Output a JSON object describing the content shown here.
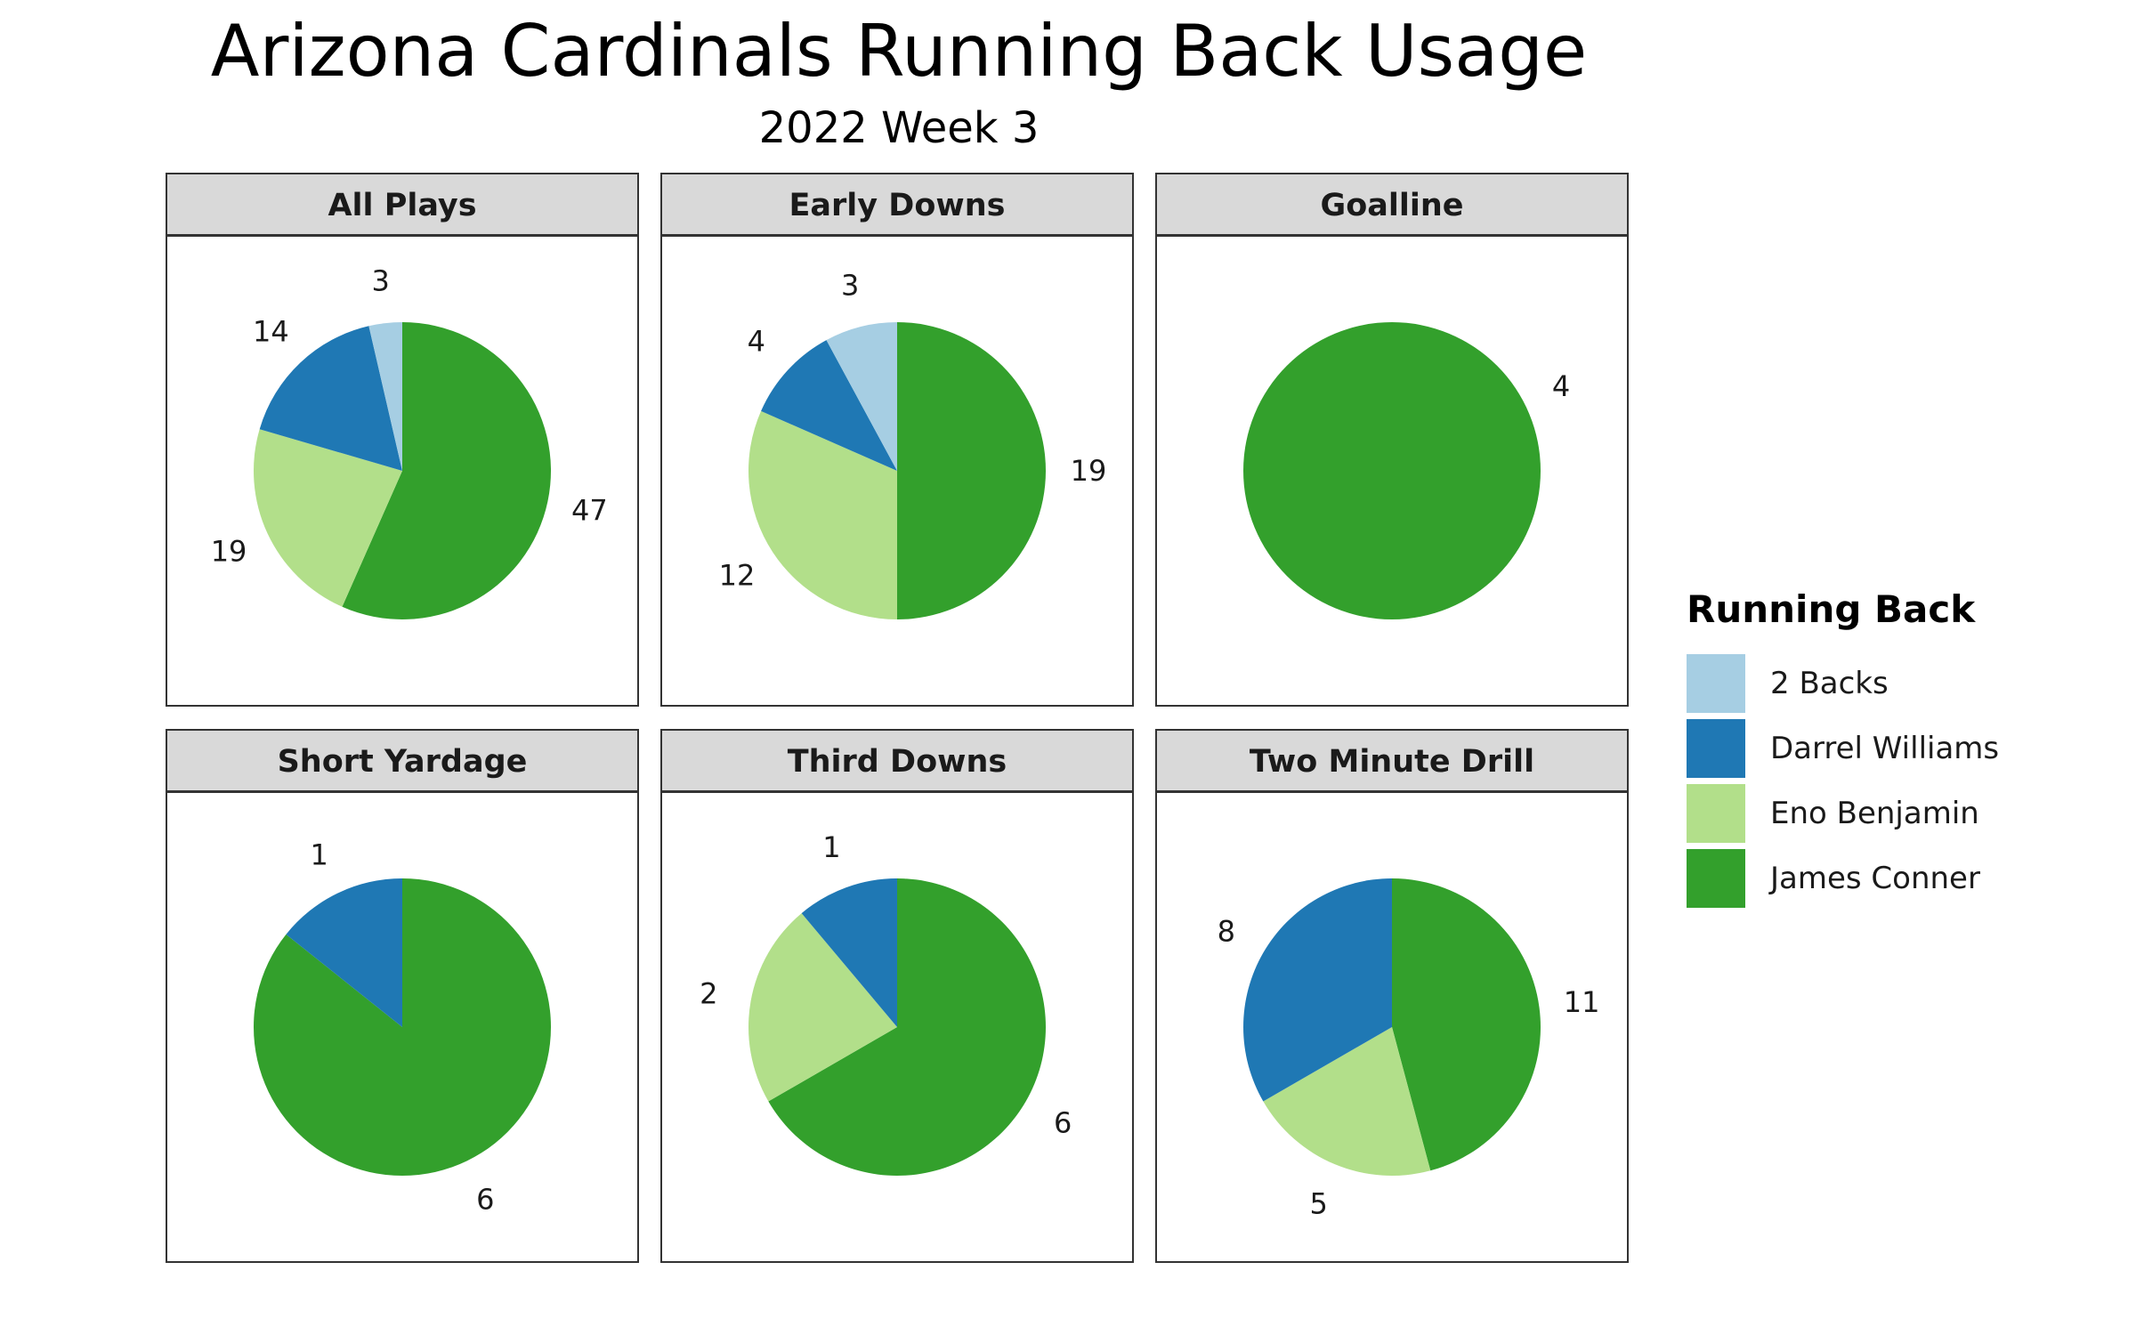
{
  "chart_data": {
    "type": "pie",
    "title": "Arizona Cardinals Running Back Usage",
    "subtitle": "2022 Week 3",
    "legend": {
      "title": "Running Back",
      "position": "right",
      "entries": [
        {
          "name": "2 Backs",
          "color": "#a6cee3"
        },
        {
          "name": "Darrel Williams",
          "color": "#1f78b4"
        },
        {
          "name": "Eno Benjamin",
          "color": "#b2df8a"
        },
        {
          "name": "James Conner",
          "color": "#33a02c"
        }
      ]
    },
    "panels": [
      {
        "title": "All Plays",
        "slices": [
          {
            "name": "James Conner",
            "value": 47
          },
          {
            "name": "Eno Benjamin",
            "value": 19
          },
          {
            "name": "Darrel Williams",
            "value": 14
          },
          {
            "name": "2 Backs",
            "value": 3
          }
        ]
      },
      {
        "title": "Early Downs",
        "slices": [
          {
            "name": "James Conner",
            "value": 19
          },
          {
            "name": "Eno Benjamin",
            "value": 12
          },
          {
            "name": "Darrel Williams",
            "value": 4
          },
          {
            "name": "2 Backs",
            "value": 3
          }
        ]
      },
      {
        "title": "Goalline",
        "slices": [
          {
            "name": "James Conner",
            "value": 4
          }
        ]
      },
      {
        "title": "Short Yardage",
        "slices": [
          {
            "name": "James Conner",
            "value": 6
          },
          {
            "name": "Darrel Williams",
            "value": 1
          }
        ]
      },
      {
        "title": "Third Downs",
        "slices": [
          {
            "name": "James Conner",
            "value": 6
          },
          {
            "name": "Eno Benjamin",
            "value": 2
          },
          {
            "name": "Darrel Williams",
            "value": 1
          }
        ]
      },
      {
        "title": "Two Minute Drill",
        "slices": [
          {
            "name": "James Conner",
            "value": 11
          },
          {
            "name": "Eno Benjamin",
            "value": 5
          },
          {
            "name": "Darrel Williams",
            "value": 8
          }
        ]
      }
    ]
  }
}
